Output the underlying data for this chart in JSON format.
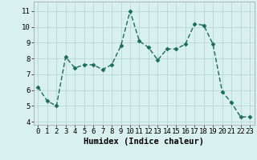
{
  "x": [
    0,
    1,
    2,
    3,
    4,
    5,
    6,
    7,
    8,
    9,
    10,
    11,
    12,
    13,
    14,
    15,
    16,
    17,
    18,
    19,
    20,
    21,
    22,
    23
  ],
  "y": [
    6.2,
    5.3,
    5.0,
    8.1,
    7.4,
    7.6,
    7.6,
    7.3,
    7.6,
    8.8,
    11.0,
    9.1,
    8.7,
    7.9,
    8.6,
    8.6,
    8.9,
    10.2,
    10.1,
    8.9,
    5.9,
    5.2,
    4.3,
    4.3
  ],
  "line_color": "#1a6b5a",
  "marker": "D",
  "marker_size": 2.5,
  "bg_color": "#d8f0ee",
  "grid_color": "#b8d8d4",
  "xlabel": "Humidex (Indice chaleur)",
  "ylim": [
    3.8,
    11.6
  ],
  "xlim": [
    -0.5,
    23.5
  ],
  "yticks": [
    4,
    5,
    6,
    7,
    8,
    9,
    10,
    11
  ],
  "xticks": [
    0,
    1,
    2,
    3,
    4,
    5,
    6,
    7,
    8,
    9,
    10,
    11,
    12,
    13,
    14,
    15,
    16,
    17,
    18,
    19,
    20,
    21,
    22,
    23
  ],
  "tick_fontsize": 6.5,
  "xlabel_fontsize": 7.5
}
